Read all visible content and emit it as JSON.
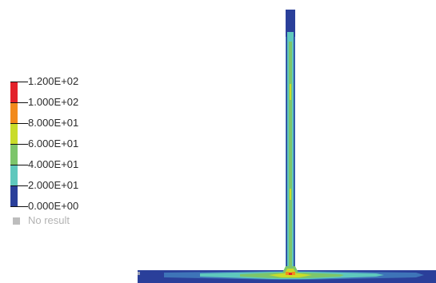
{
  "legend": {
    "labels": [
      "1.200E+02",
      "1.000E+02",
      "8.000E+01",
      "6.000E+01",
      "4.000E+01",
      "2.000E+01",
      "0.000E+00"
    ],
    "no_result_label": "No result",
    "colors": {
      "band_100_120": "#e3222b",
      "band_80_100": "#f28a1c",
      "band_60_80": "#c9dc2a",
      "band_40_60": "#7dc56b",
      "band_20_40": "#5fc8bd",
      "band_0_20": "#2a3f9a",
      "no_result": "#bdbdbd"
    }
  },
  "model": {
    "colors": {
      "dark_blue": "#2a3f9a",
      "mid_blue": "#3e74b8",
      "teal": "#5fc8bd",
      "green": "#7dc56b",
      "yellow_green": "#c9dc2a",
      "orange": "#f28a1c",
      "red": "#e3222b"
    }
  }
}
